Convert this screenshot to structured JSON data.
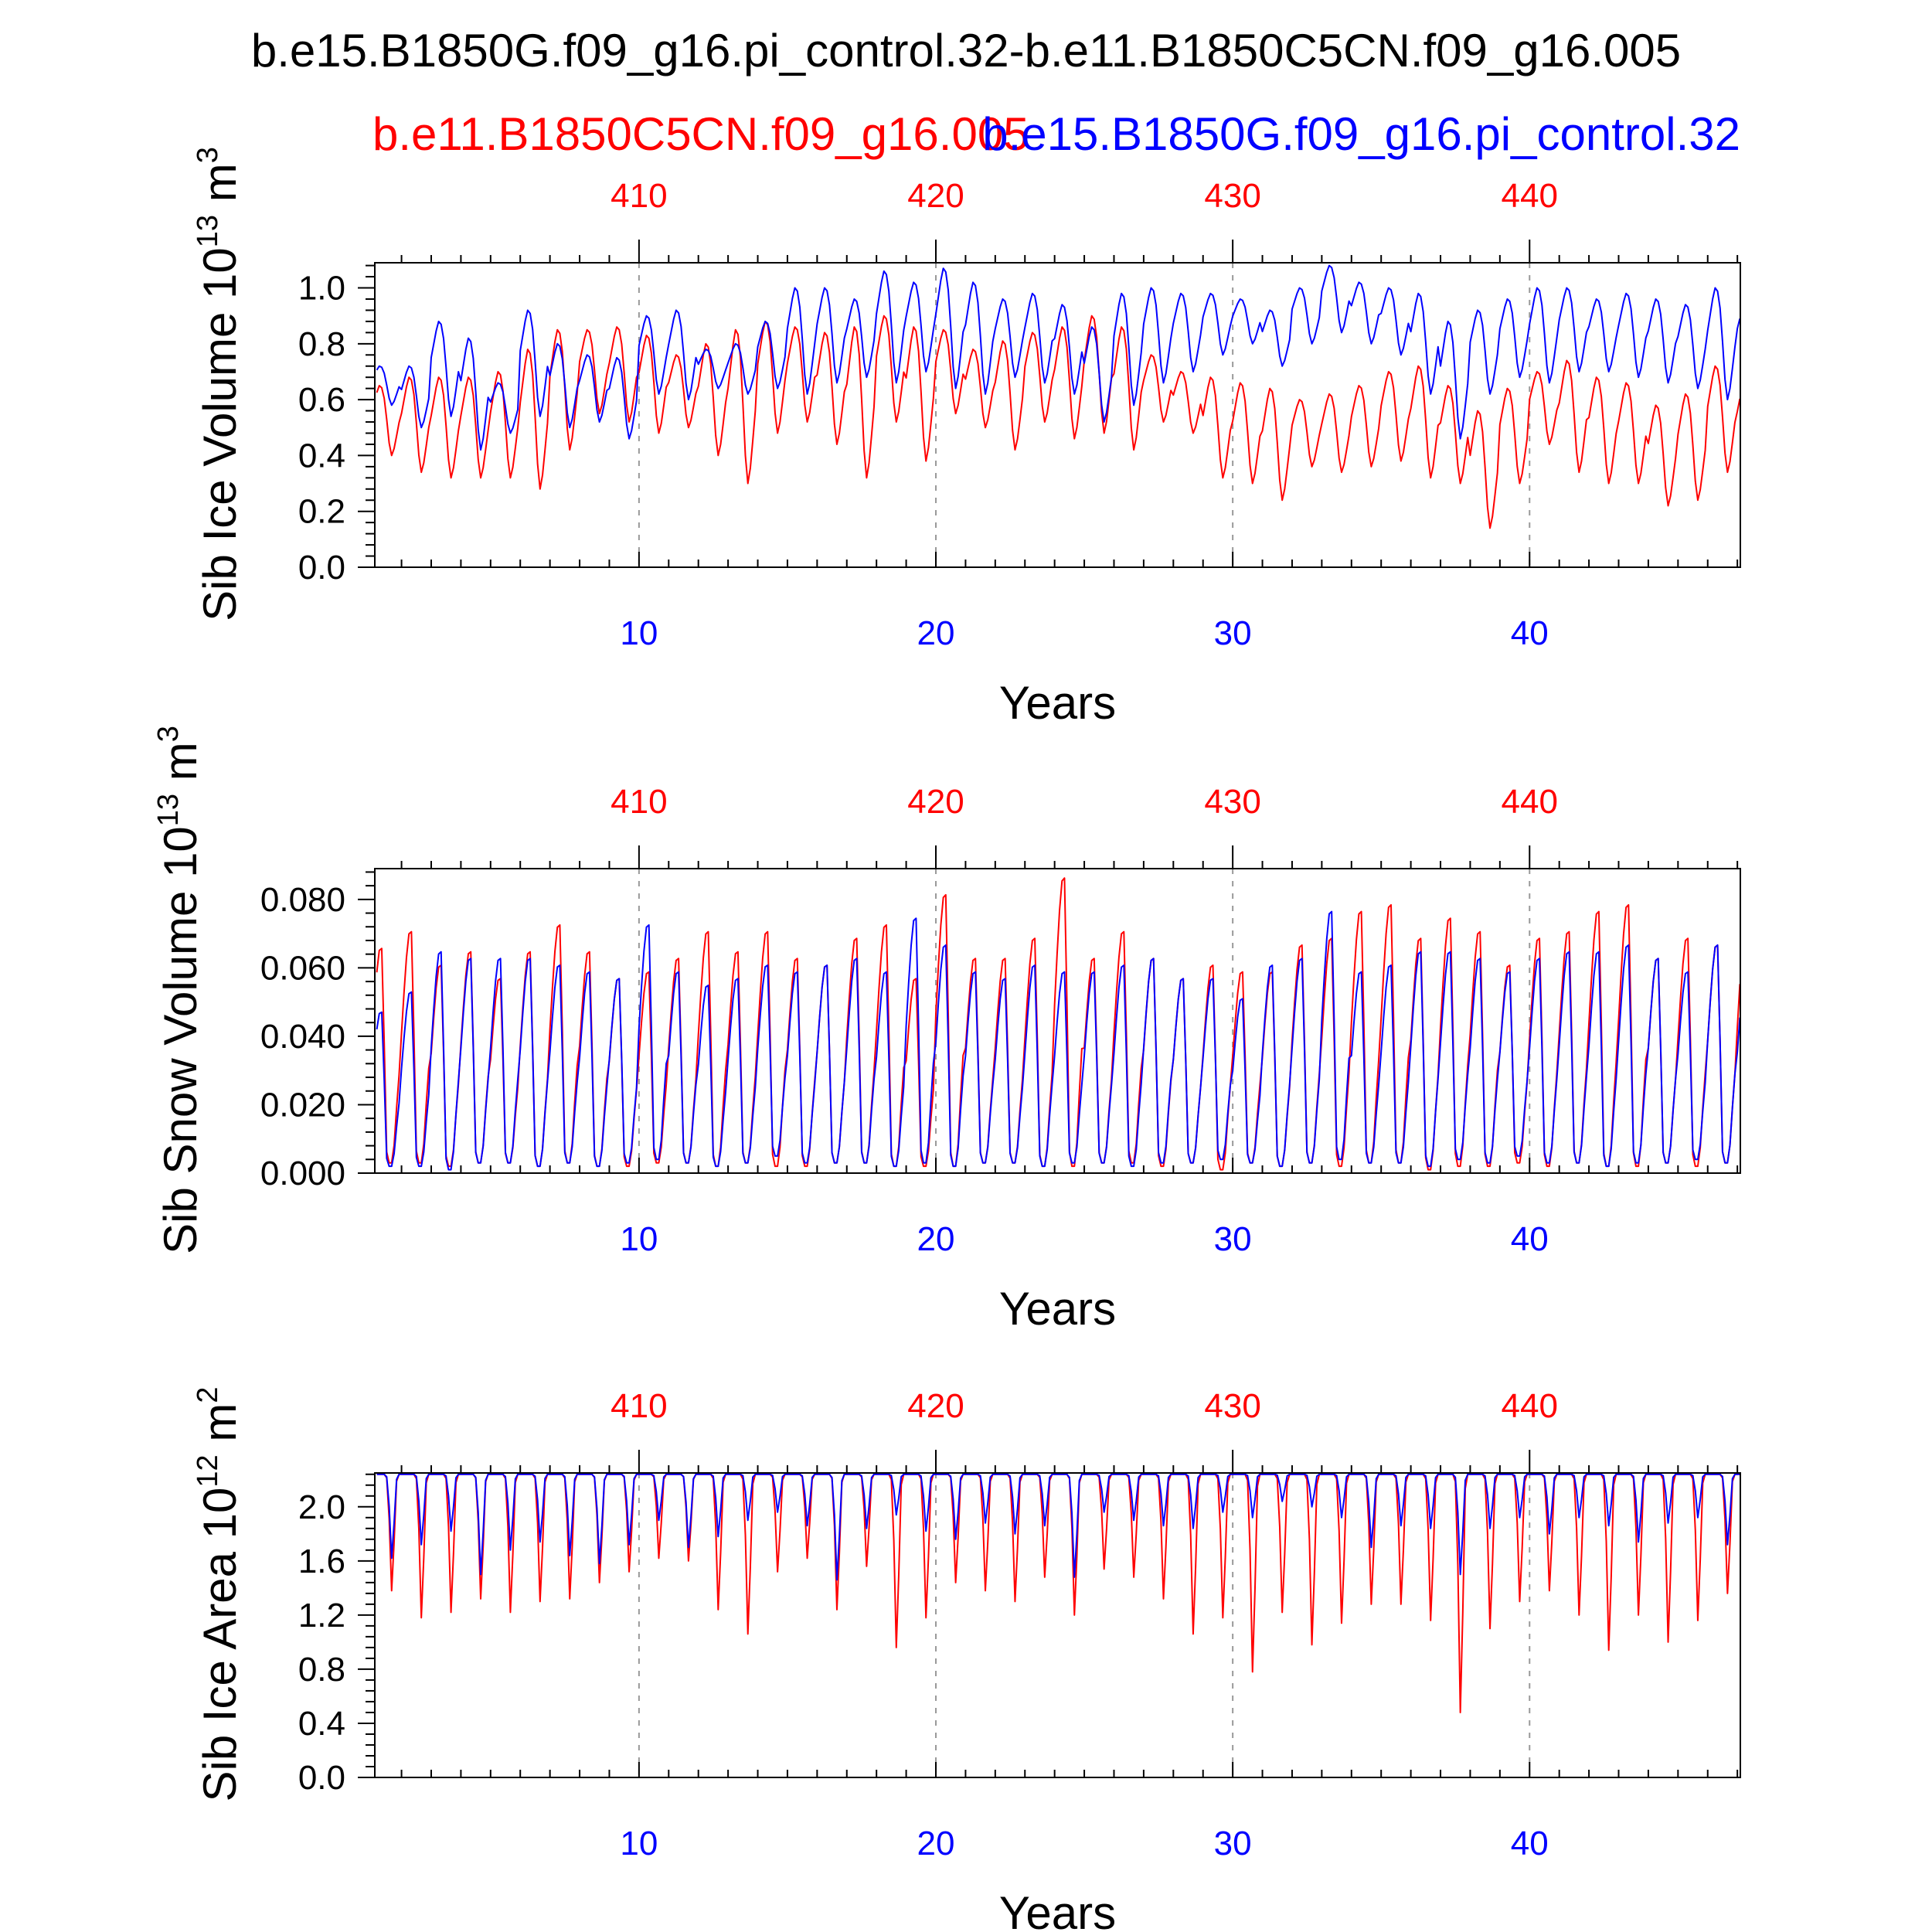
{
  "figure": {
    "title": "b.e15.B1850G.f09_g16.pi_control.32-b.e11.B1850C5CN.f09_g16.005",
    "case_red": "b.e11.B1850C5CN.f09_g16.005",
    "case_blue": "b.e15.B1850G.f09_g16.pi_control.32",
    "color_red": "#ff0000",
    "color_blue": "#0000ff",
    "color_axis": "#000000",
    "color_grid": "#999999"
  },
  "chart_data": [
    {
      "type": "line",
      "title": "",
      "xlabel": "Years",
      "ylabel": "Sib Ice Volume 10^13 m^3",
      "ylabel_parts": {
        "base": "Sib Ice Volume 10",
        "exp1": "13",
        "mid": " m",
        "exp2": "3"
      },
      "xlim": [
        1.1,
        47.1
      ],
      "ylim": [
        0.0,
        1.09
      ],
      "x_ticks": [
        10,
        20,
        30,
        40
      ],
      "x_tick_labels": [
        "10",
        "20",
        "30",
        "40"
      ],
      "top_ticks": [
        10,
        20,
        30,
        40
      ],
      "top_tick_labels": [
        "410",
        "420",
        "430",
        "440"
      ],
      "y_ticks": [
        0.0,
        0.2,
        0.4,
        0.6,
        0.8,
        1.0
      ],
      "y_tick_labels": [
        "0.0",
        "0.2",
        "0.4",
        "0.6",
        "0.8",
        "1.0"
      ],
      "series": [
        {
          "name": "b.e11.B1850C5CN.f09_g16.005",
          "color": "#ff0000",
          "annual": {
            "max": [
              0.65,
              0.68,
              0.68,
              0.68,
              0.7,
              0.78,
              0.85,
              0.85,
              0.86,
              0.83,
              0.76,
              0.8,
              0.85,
              0.88,
              0.86,
              0.84,
              0.86,
              0.9,
              0.86,
              0.85,
              0.78,
              0.81,
              0.84,
              0.86,
              0.9,
              0.86,
              0.76,
              0.7,
              0.68,
              0.66,
              0.64,
              0.6,
              0.62,
              0.65,
              0.7,
              0.72,
              0.65,
              0.56,
              0.64,
              0.7,
              0.74,
              0.68,
              0.66,
              0.58,
              0.62,
              0.72,
              0.68
            ],
            "min": [
              0.4,
              0.34,
              0.32,
              0.32,
              0.32,
              0.28,
              0.42,
              0.55,
              0.52,
              0.48,
              0.5,
              0.4,
              0.3,
              0.48,
              0.52,
              0.44,
              0.32,
              0.52,
              0.38,
              0.55,
              0.5,
              0.42,
              0.52,
              0.46,
              0.48,
              0.42,
              0.52,
              0.48,
              0.32,
              0.3,
              0.24,
              0.36,
              0.34,
              0.36,
              0.38,
              0.32,
              0.3,
              0.14,
              0.3,
              0.44,
              0.34,
              0.3,
              0.3,
              0.22,
              0.24,
              0.34,
              0.36
            ]
          }
        },
        {
          "name": "b.e15.B1850G.f09_g16.pi_control.32",
          "color": "#0000ff",
          "annual": {
            "max": [
              0.72,
              0.72,
              0.88,
              0.82,
              0.66,
              0.92,
              0.8,
              0.76,
              0.75,
              0.9,
              0.92,
              0.78,
              0.8,
              0.88,
              1.0,
              1.0,
              0.96,
              1.06,
              1.02,
              1.07,
              1.02,
              0.96,
              0.98,
              0.94,
              0.86,
              0.98,
              1.0,
              0.98,
              0.98,
              0.96,
              0.92,
              1.0,
              1.08,
              1.02,
              1.0,
              0.98,
              0.88,
              0.92,
              0.96,
              1.0,
              1.0,
              0.96,
              0.98,
              0.96,
              0.94,
              1.0,
              0.95
            ],
            "min": [
              0.58,
              0.5,
              0.54,
              0.42,
              0.48,
              0.54,
              0.5,
              0.52,
              0.46,
              0.62,
              0.6,
              0.64,
              0.62,
              0.64,
              0.62,
              0.66,
              0.68,
              0.66,
              0.7,
              0.64,
              0.62,
              0.68,
              0.66,
              0.62,
              0.52,
              0.58,
              0.66,
              0.7,
              0.76,
              0.8,
              0.72,
              0.8,
              0.84,
              0.8,
              0.76,
              0.62,
              0.46,
              0.62,
              0.68,
              0.66,
              0.7,
              0.7,
              0.68,
              0.66,
              0.64,
              0.6,
              0.7
            ]
          }
        }
      ]
    },
    {
      "type": "line",
      "title": "",
      "xlabel": "Years",
      "ylabel": "Sib Snow Volume 10^13 m^3",
      "ylabel_parts": {
        "base": "Sib Snow Volume 10",
        "exp1": "13",
        "mid": " m",
        "exp2": "3"
      },
      "xlim": [
        1.1,
        47.1
      ],
      "ylim": [
        0.0,
        0.089
      ],
      "x_ticks": [
        10,
        20,
        30,
        40
      ],
      "x_tick_labels": [
        "10",
        "20",
        "30",
        "40"
      ],
      "top_ticks": [
        10,
        20,
        30,
        40
      ],
      "top_tick_labels": [
        "410",
        "420",
        "430",
        "440"
      ],
      "y_ticks": [
        0.0,
        0.02,
        0.04,
        0.06,
        0.08
      ],
      "y_tick_labels": [
        "0.000",
        "0.020",
        "0.040",
        "0.060",
        "0.080"
      ],
      "series": [
        {
          "name": "b.e11.B1850C5CN.f09_g16.005",
          "color": "#ff0000",
          "annual": {
            "max": [
              0.067,
              0.072,
              0.062,
              0.066,
              0.058,
              0.066,
              0.074,
              0.066,
              0.058,
              0.06,
              0.064,
              0.072,
              0.066,
              0.072,
              0.064,
              0.062,
              0.07,
              0.074,
              0.058,
              0.083,
              0.064,
              0.064,
              0.07,
              0.088,
              0.064,
              0.072,
              0.064,
              0.058,
              0.062,
              0.06,
              0.06,
              0.068,
              0.07,
              0.078,
              0.08,
              0.07,
              0.076,
              0.072,
              0.062,
              0.07,
              0.072,
              0.078,
              0.08,
              0.064,
              0.07,
              0.068,
              0.076
            ],
            "min": [
              0.003,
              0.003,
              0.002,
              0.003,
              0.003,
              0.002,
              0.003,
              0.002,
              0.002,
              0.003,
              0.003,
              0.002,
              0.003,
              0.002,
              0.002,
              0.003,
              0.003,
              0.002,
              0.002,
              0.002,
              0.003,
              0.003,
              0.002,
              0.002,
              0.003,
              0.003,
              0.002,
              0.003,
              0.001,
              0.003,
              0.002,
              0.003,
              0.002,
              0.003,
              0.003,
              0.001,
              0.002,
              0.002,
              0.003,
              0.002,
              0.003,
              0.002,
              0.002,
              0.003,
              0.002,
              0.003,
              0.002
            ]
          }
        },
        {
          "name": "b.e15.B1850G.f09_g16.pi_control.32",
          "color": "#0000ff",
          "annual": {
            "max": [
              0.048,
              0.054,
              0.066,
              0.064,
              0.064,
              0.064,
              0.062,
              0.06,
              0.058,
              0.074,
              0.06,
              0.056,
              0.058,
              0.062,
              0.06,
              0.062,
              0.064,
              0.06,
              0.076,
              0.068,
              0.06,
              0.058,
              0.062,
              0.06,
              0.06,
              0.062,
              0.064,
              0.058,
              0.058,
              0.052,
              0.062,
              0.064,
              0.078,
              0.06,
              0.062,
              0.066,
              0.066,
              0.064,
              0.06,
              0.064,
              0.066,
              0.066,
              0.068,
              0.064,
              0.06,
              0.068,
              0.062
            ],
            "min": [
              0.002,
              0.002,
              0.001,
              0.003,
              0.003,
              0.002,
              0.003,
              0.002,
              0.003,
              0.004,
              0.003,
              0.002,
              0.003,
              0.005,
              0.003,
              0.003,
              0.003,
              0.002,
              0.003,
              0.002,
              0.003,
              0.003,
              0.002,
              0.003,
              0.003,
              0.002,
              0.003,
              0.003,
              0.004,
              0.003,
              0.002,
              0.003,
              0.004,
              0.003,
              0.003,
              0.002,
              0.004,
              0.003,
              0.005,
              0.003,
              0.003,
              0.002,
              0.003,
              0.003,
              0.004,
              0.003,
              0.003
            ]
          }
        }
      ]
    },
    {
      "type": "line",
      "title": "",
      "xlabel": "Years",
      "ylabel": "Sib Ice Area 10^12 m^2",
      "ylabel_parts": {
        "base": "Sib Ice Area 10",
        "exp1": "12",
        "mid": " m",
        "exp2": "2"
      },
      "xlim": [
        1.1,
        47.1
      ],
      "ylim": [
        0.0,
        2.25
      ],
      "x_ticks": [
        10,
        20,
        30,
        40
      ],
      "x_tick_labels": [
        "10",
        "20",
        "30",
        "40"
      ],
      "top_ticks": [
        10,
        20,
        30,
        40
      ],
      "top_tick_labels": [
        "410",
        "420",
        "430",
        "440"
      ],
      "y_ticks": [
        0.0,
        0.4,
        0.8,
        1.2,
        1.6,
        2.0
      ],
      "y_tick_labels": [
        "0.0",
        "0.4",
        "0.8",
        "1.2",
        "1.6",
        "2.0"
      ],
      "series": [
        {
          "name": "b.e11.B1850C5CN.f09_g16.005",
          "color": "#ff0000",
          "annual": {
            "max": [
              2.24,
              2.24,
              2.24,
              2.24,
              2.24,
              2.24,
              2.24,
              2.24,
              2.24,
              2.24,
              2.24,
              2.24,
              2.24,
              2.24,
              2.24,
              2.24,
              2.24,
              2.24,
              2.24,
              2.24,
              2.24,
              2.24,
              2.24,
              2.24,
              2.24,
              2.24,
              2.24,
              2.24,
              2.24,
              2.24,
              2.24,
              2.24,
              2.24,
              2.24,
              2.24,
              2.24,
              2.24,
              2.24,
              2.24,
              2.24,
              2.24,
              2.24,
              2.24,
              2.24,
              2.24,
              2.24,
              2.24
            ],
            "min": [
              1.38,
              1.18,
              1.22,
              1.32,
              1.22,
              1.3,
              1.32,
              1.44,
              1.52,
              1.62,
              1.6,
              1.24,
              1.06,
              1.52,
              1.62,
              1.24,
              1.56,
              0.96,
              1.18,
              1.44,
              1.38,
              1.3,
              1.48,
              1.2,
              1.54,
              1.48,
              1.32,
              1.06,
              1.18,
              0.78,
              1.22,
              0.98,
              1.14,
              1.28,
              1.28,
              1.16,
              0.48,
              1.1,
              1.3,
              1.38,
              1.2,
              0.94,
              1.2,
              1.0,
              1.16,
              1.36,
              1.22
            ]
          }
        },
        {
          "name": "b.e15.B1850G.f09_g16.pi_control.32",
          "color": "#0000ff",
          "annual": {
            "max": [
              2.24,
              2.24,
              2.24,
              2.24,
              2.24,
              2.24,
              2.24,
              2.24,
              2.24,
              2.24,
              2.24,
              2.24,
              2.24,
              2.24,
              2.24,
              2.24,
              2.24,
              2.24,
              2.24,
              2.24,
              2.24,
              2.24,
              2.24,
              2.24,
              2.24,
              2.24,
              2.24,
              2.24,
              2.24,
              2.24,
              2.24,
              2.24,
              2.24,
              2.24,
              2.24,
              2.24,
              2.24,
              2.24,
              2.24,
              2.24,
              2.24,
              2.24,
              2.24,
              2.24,
              2.24,
              2.24,
              2.24
            ],
            "min": [
              1.62,
              1.72,
              1.82,
              1.5,
              1.68,
              1.74,
              1.64,
              1.58,
              1.72,
              1.9,
              1.7,
              1.78,
              1.9,
              1.96,
              1.86,
              1.46,
              1.84,
              1.94,
              1.82,
              1.76,
              1.88,
              1.8,
              1.86,
              1.48,
              1.96,
              1.9,
              1.86,
              1.84,
              1.96,
              1.92,
              2.04,
              2.0,
              1.92,
              1.7,
              1.86,
              1.84,
              1.5,
              1.84,
              1.92,
              1.8,
              1.92,
              1.86,
              1.74,
              1.88,
              1.92,
              1.72,
              1.76
            ]
          }
        }
      ]
    }
  ]
}
